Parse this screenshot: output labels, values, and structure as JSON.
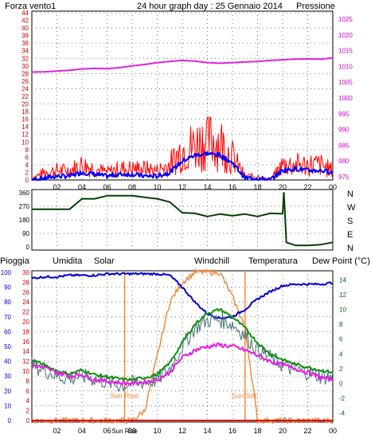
{
  "header": {
    "left": "Forza vento1",
    "center": "24 hour graph day : 25 Gennaio 2014",
    "right": "Pressione"
  },
  "legend2": {
    "pioggia": "Pioggia",
    "umidita": "Umidita",
    "solar": "Solar",
    "windchill": "Windchill",
    "temperatura": "Temperatura",
    "dewpoint": "Dew Point (°C)"
  },
  "annotations": {
    "sunrise": "Sun Rise",
    "sunset": "Sun Set"
  },
  "colors": {
    "wind": "#ff0000",
    "avgwind": "#0000ff",
    "pressure": "#e020e0",
    "winddir": "#004000",
    "humidity": "#0000cc",
    "solar": "#f08a40",
    "windchill": "#407070",
    "temperature": "#109010",
    "dewpoint": "#e020e0",
    "rain": "#e00000",
    "grid": "#777777"
  },
  "chart_data": [
    {
      "type": "line",
      "x_ticks": [
        "02",
        "04",
        "06",
        "08",
        "10",
        "12",
        "14",
        "16",
        "18",
        "20",
        "22",
        "00"
      ],
      "x": [
        0,
        1,
        2,
        3,
        4,
        5,
        6,
        7,
        8,
        9,
        10,
        11,
        12,
        13,
        14,
        15,
        16,
        17,
        18,
        19,
        20,
        21,
        22,
        23,
        24
      ],
      "y_left_ticks": [
        "0",
        "2",
        "4",
        "6",
        "8",
        "10",
        "12",
        "14",
        "16",
        "18",
        "20",
        "22",
        "24",
        "26",
        "28",
        "30",
        "32",
        "34",
        "36",
        "38",
        "40",
        "42",
        "44"
      ],
      "y_right_ticks": [
        "975",
        "980",
        "985",
        "990",
        "995",
        "1000",
        "1005",
        "1010",
        "1015",
        "1020",
        "1025"
      ],
      "ylim_left": [
        0,
        44
      ],
      "ylim_right": [
        975,
        1025
      ],
      "series": [
        {
          "name": "Forza vento1",
          "axis": "left",
          "values": [
            0.5,
            2,
            2.5,
            2.5,
            4,
            3,
            2,
            3,
            3,
            3,
            2.5,
            4,
            8,
            9,
            11,
            10,
            6,
            1,
            1,
            0,
            4,
            4,
            4,
            4,
            2.5
          ]
        },
        {
          "name": "",
          "axis": "left",
          "values": [
            0,
            0.5,
            1,
            1,
            2,
            1.5,
            1,
            1.5,
            1.5,
            1,
            1,
            2,
            5,
            6.5,
            7,
            6.5,
            4.5,
            0.5,
            0.5,
            0,
            2.5,
            3,
            2.5,
            2.5,
            2
          ]
        },
        {
          "name": "Pressione",
          "axis": "right",
          "values": [
            1008.2,
            1008.3,
            1008.5,
            1008.8,
            1009.2,
            1009.4,
            1009.3,
            1009.6,
            1010.2,
            1010.6,
            1011.2,
            1011.6,
            1011.9,
            1011.7,
            1011.2,
            1011.0,
            1011.2,
            1011.4,
            1011.6,
            1011.9,
            1012.1,
            1012.3,
            1012.4,
            1012.3,
            1012.7
          ]
        }
      ]
    },
    {
      "type": "line",
      "x": [
        0,
        1,
        2,
        3,
        4,
        5,
        6,
        7,
        8,
        9,
        10,
        11,
        12,
        13,
        14,
        15,
        16,
        17,
        18,
        19,
        20,
        20.1,
        20.3,
        21,
        22,
        23,
        24
      ],
      "y_ticks": [
        "360",
        "270",
        "180",
        "90",
        "0"
      ],
      "y_right_labels": [
        "N",
        "W",
        "S",
        "E",
        "N"
      ],
      "ylim": [
        0,
        360
      ],
      "series": [
        {
          "name": "",
          "values": [
            250,
            250,
            250,
            250,
            320,
            320,
            340,
            340,
            340,
            330,
            320,
            290,
            235,
            215,
            210,
            210,
            215,
            210,
            210,
            215,
            220,
            360,
            30,
            10,
            10,
            15,
            30
          ]
        }
      ]
    },
    {
      "type": "line",
      "x": [
        0,
        1,
        2,
        3,
        4,
        5,
        6,
        7,
        8,
        9,
        10,
        11,
        12,
        13,
        14,
        15,
        16,
        17,
        18,
        19,
        20,
        21,
        22,
        23,
        24
      ],
      "x_ticks": [
        "02",
        "04",
        "06",
        "08",
        "Sun Rise",
        "10",
        "12",
        "14",
        "16",
        "18",
        "20",
        "22",
        "00"
      ],
      "y_left_ticks": [
        "0",
        "10",
        "20",
        "30",
        "40",
        "50",
        "60",
        "70",
        "80",
        "90",
        "100"
      ],
      "y_rain_ticks": [
        "0",
        "2",
        "4",
        "6",
        "8",
        "10",
        "12",
        "14",
        "16",
        "18",
        "20",
        "22",
        "24",
        "26",
        "28",
        "30"
      ],
      "y_right_ticks": [
        "-4",
        "-2",
        "0",
        "2",
        "4",
        "6",
        "8",
        "10",
        "12",
        "14"
      ],
      "ylim_left": [
        0,
        100
      ],
      "ylim_rain": [
        0,
        30
      ],
      "ylim_right": [
        -5,
        15
      ],
      "series": [
        {
          "name": "Pioggia",
          "axis": "rain",
          "values": [
            0,
            0,
            0,
            0,
            0,
            0,
            0,
            0,
            0,
            0,
            0,
            0,
            0,
            0,
            0,
            0,
            0,
            0,
            0,
            0,
            0,
            0,
            0,
            0,
            0
          ]
        },
        {
          "name": "Umidita",
          "axis": "left",
          "values": [
            96,
            97,
            97,
            98,
            98,
            98,
            99,
            99,
            99,
            99,
            99,
            98,
            90,
            80,
            72,
            69,
            70,
            75,
            82,
            87,
            91,
            92,
            92,
            92,
            93
          ]
        },
        {
          "name": "Solar",
          "axis": "rain",
          "values": [
            0,
            0,
            0,
            0,
            0,
            0,
            0,
            0,
            0,
            2,
            13,
            24,
            28,
            30,
            30,
            30,
            25,
            19,
            0,
            0,
            0,
            0,
            0,
            0,
            0
          ]
        },
        {
          "name": "Windchill",
          "axis": "right",
          "values": [
            2.5,
            1.8,
            1.0,
            0.6,
            1.0,
            0.6,
            0.2,
            -0.3,
            0.0,
            0.2,
            0.5,
            2.0,
            5.0,
            7.5,
            8.5,
            8.6,
            8.0,
            6.5,
            4.5,
            3.5,
            2.5,
            1.8,
            1.5,
            1.0,
            0.8
          ]
        },
        {
          "name": "Temperatura",
          "axis": "right",
          "values": [
            3.2,
            2.5,
            1.7,
            1.3,
            1.8,
            1.2,
            0.9,
            0.6,
            0.5,
            0.8,
            1.2,
            2.8,
            5.5,
            8.0,
            9.5,
            10.0,
            9.0,
            7.5,
            5.5,
            4.0,
            3.2,
            2.6,
            2.2,
            1.8,
            1.5
          ]
        },
        {
          "name": "Dew Point (°C)",
          "axis": "right",
          "values": [
            2.5,
            2.1,
            1.5,
            1.0,
            1.2,
            0.5,
            0.3,
            0.1,
            0.0,
            0.2,
            0.5,
            1.5,
            3.5,
            4.5,
            5.0,
            5.2,
            5.0,
            4.5,
            3.8,
            3.0,
            2.5,
            2.0,
            1.5,
            0.8,
            0.5
          ]
        }
      ]
    }
  ]
}
